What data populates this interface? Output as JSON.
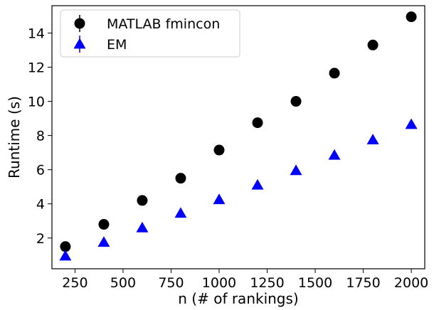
{
  "chart_data": {
    "type": "scatter",
    "title": "",
    "xlabel": "n (# of rankings)",
    "ylabel": "Runtime (s)",
    "xlim": [
      130,
      2070
    ],
    "ylim": [
      0.2,
      15.6
    ],
    "xticks": [
      250,
      500,
      750,
      1000,
      1250,
      1500,
      1750,
      2000
    ],
    "yticks": [
      2,
      4,
      6,
      8,
      10,
      12,
      14
    ],
    "grid": false,
    "legend_position": "top-left",
    "series": [
      {
        "name": "MATLAB fmincon",
        "marker": "circle-with-errorbar",
        "color": "#000000",
        "points": [
          {
            "x": 200,
            "y": 1.5
          },
          {
            "x": 400,
            "y": 2.8
          },
          {
            "x": 600,
            "y": 4.2
          },
          {
            "x": 800,
            "y": 5.5
          },
          {
            "x": 1000,
            "y": 7.15
          },
          {
            "x": 1200,
            "y": 8.75
          },
          {
            "x": 1400,
            "y": 10.0
          },
          {
            "x": 1600,
            "y": 11.65
          },
          {
            "x": 1800,
            "y": 13.3
          },
          {
            "x": 2000,
            "y": 14.95
          }
        ]
      },
      {
        "name": "EM",
        "marker": "triangle-with-errorbar",
        "color": "#0000ff",
        "points": [
          {
            "x": 200,
            "y": 0.95
          },
          {
            "x": 400,
            "y": 1.75
          },
          {
            "x": 600,
            "y": 2.6
          },
          {
            "x": 800,
            "y": 3.45
          },
          {
            "x": 1000,
            "y": 4.25
          },
          {
            "x": 1200,
            "y": 5.1
          },
          {
            "x": 1400,
            "y": 5.95
          },
          {
            "x": 1600,
            "y": 6.85
          },
          {
            "x": 1800,
            "y": 7.75
          },
          {
            "x": 2000,
            "y": 8.65
          }
        ]
      }
    ]
  }
}
